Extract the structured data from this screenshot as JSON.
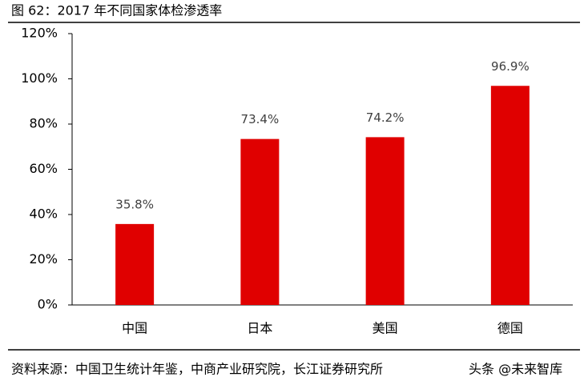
{
  "chart_data": {
    "type": "bar",
    "title": "图 62：2017 年不同国家体检渗透率",
    "categories": [
      "中国",
      "日本",
      "美国",
      "德国"
    ],
    "values": [
      35.8,
      73.4,
      74.2,
      96.9
    ],
    "value_labels": [
      "35.8%",
      "73.4%",
      "74.2%",
      "96.9%"
    ],
    "color": "#e00000",
    "ylim": [
      0,
      120
    ],
    "yticks": [
      {
        "value": 0,
        "label": "0%"
      },
      {
        "value": 20,
        "label": "20%"
      },
      {
        "value": 40,
        "label": "40%"
      },
      {
        "value": 60,
        "label": "60%"
      },
      {
        "value": 80,
        "label": "80%"
      },
      {
        "value": 100,
        "label": "100%"
      },
      {
        "value": 120,
        "label": "120%"
      }
    ],
    "grid": false,
    "source": "资料来源：中国卫生统计年鉴，中商产业研究院，长江证券研究所",
    "watermark": "头条 @未来智库"
  }
}
